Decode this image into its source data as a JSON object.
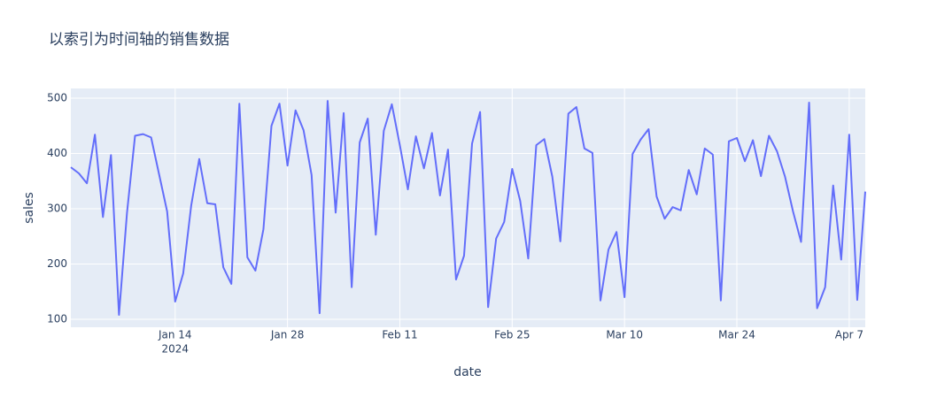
{
  "chart_data": {
    "type": "line",
    "title": "以索引为时间轴的销售数据",
    "x_label": "date",
    "y_label": "sales",
    "color": "#636efa",
    "grid": true,
    "x": [
      "2024-01-01",
      "2024-01-02",
      "2024-01-03",
      "2024-01-04",
      "2024-01-05",
      "2024-01-06",
      "2024-01-07",
      "2024-01-08",
      "2024-01-09",
      "2024-01-10",
      "2024-01-11",
      "2024-01-12",
      "2024-01-13",
      "2024-01-14",
      "2024-01-15",
      "2024-01-16",
      "2024-01-17",
      "2024-01-18",
      "2024-01-19",
      "2024-01-20",
      "2024-01-21",
      "2024-01-22",
      "2024-01-23",
      "2024-01-24",
      "2024-01-25",
      "2024-01-26",
      "2024-01-27",
      "2024-01-28",
      "2024-01-29",
      "2024-01-30",
      "2024-01-31",
      "2024-02-01",
      "2024-02-02",
      "2024-02-03",
      "2024-02-04",
      "2024-02-05",
      "2024-02-06",
      "2024-02-07",
      "2024-02-08",
      "2024-02-09",
      "2024-02-10",
      "2024-02-11",
      "2024-02-12",
      "2024-02-13",
      "2024-02-14",
      "2024-02-15",
      "2024-02-16",
      "2024-02-17",
      "2024-02-18",
      "2024-02-19",
      "2024-02-20",
      "2024-02-21",
      "2024-02-22",
      "2024-02-23",
      "2024-02-24",
      "2024-02-25",
      "2024-02-26",
      "2024-02-27",
      "2024-02-28",
      "2024-02-29",
      "2024-03-01",
      "2024-03-02",
      "2024-03-03",
      "2024-03-04",
      "2024-03-05",
      "2024-03-06",
      "2024-03-07",
      "2024-03-08",
      "2024-03-09",
      "2024-03-10",
      "2024-03-11",
      "2024-03-12",
      "2024-03-13",
      "2024-03-14",
      "2024-03-15",
      "2024-03-16",
      "2024-03-17",
      "2024-03-18",
      "2024-03-19",
      "2024-03-20",
      "2024-03-21",
      "2024-03-22",
      "2024-03-23",
      "2024-03-24",
      "2024-03-25",
      "2024-03-26",
      "2024-03-27",
      "2024-03-28",
      "2024-03-29",
      "2024-03-30",
      "2024-03-31",
      "2024-04-01",
      "2024-04-02",
      "2024-04-03",
      "2024-04-04",
      "2024-04-05",
      "2024-04-06",
      "2024-04-07",
      "2024-04-08",
      "2024-04-09"
    ],
    "values": [
      375,
      364,
      346,
      434,
      285,
      397,
      108,
      293,
      432,
      435,
      429,
      362,
      295,
      132,
      183,
      306,
      390,
      310,
      308,
      194,
      164,
      490,
      212,
      188,
      263,
      450,
      490,
      378,
      478,
      442,
      361,
      111,
      495,
      293,
      473,
      158,
      420,
      463,
      253,
      441,
      489,
      415,
      335,
      431,
      373,
      437,
      324,
      407,
      172,
      215,
      418,
      475,
      122,
      246,
      276,
      372,
      314,
      210,
      415,
      426,
      358,
      241,
      472,
      484,
      409,
      401,
      134,
      226,
      258,
      140,
      399,
      425,
      444,
      322,
      282,
      303,
      297,
      370,
      326,
      409,
      398,
      134,
      422,
      428,
      386,
      424,
      359,
      432,
      404,
      358,
      295,
      240,
      492,
      120,
      158,
      342,
      208,
      434,
      135,
      331
    ],
    "xlim": [
      "2024-01-01",
      "2024-04-09"
    ],
    "xticks": [
      {
        "value": "2024-01-14",
        "label": "Jan 14",
        "sublabel": "2024"
      },
      {
        "value": "2024-01-28",
        "label": "Jan 28"
      },
      {
        "value": "2024-02-11",
        "label": "Feb 11"
      },
      {
        "value": "2024-02-25",
        "label": "Feb 25"
      },
      {
        "value": "2024-03-10",
        "label": "Mar 10"
      },
      {
        "value": "2024-03-24",
        "label": "Mar 24"
      },
      {
        "value": "2024-04-07",
        "label": "Apr 7"
      }
    ],
    "ylim": [
      85.6,
      517.6
    ],
    "yticks": [
      100,
      200,
      300,
      400,
      500
    ]
  }
}
